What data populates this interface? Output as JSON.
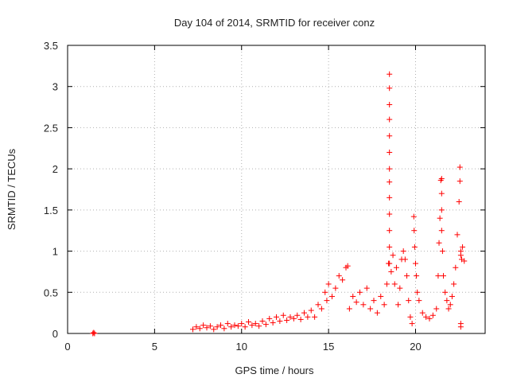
{
  "chart_data": {
    "type": "scatter",
    "title": "Day 104 of 2014, SRMTID for receiver conz",
    "xlabel": "GPS time / hours",
    "ylabel": "SRMTID / TECUs",
    "xlim": [
      0,
      24
    ],
    "ylim": [
      0,
      3.5
    ],
    "grid": true,
    "marker": "+",
    "color": "#ff0000",
    "xticks": [
      0,
      5,
      10,
      15,
      20
    ],
    "xtick_labels": [
      "0",
      "5",
      "10",
      "15",
      "20"
    ],
    "yticks": [
      0,
      0.5,
      1,
      1.5,
      2,
      2.5,
      3,
      3.5
    ],
    "ytick_labels": [
      "0",
      "0.5",
      "1",
      "1.5",
      "2",
      "2.5",
      "3",
      "3.5"
    ],
    "series": [
      {
        "name": "SRMTID",
        "x": [
          1.45,
          1.5,
          1.55,
          7.2,
          7.4,
          7.6,
          7.8,
          8.0,
          8.2,
          8.4,
          8.6,
          8.8,
          9.0,
          9.2,
          9.4,
          9.6,
          9.8,
          10.0,
          10.2,
          10.4,
          10.6,
          10.8,
          11.0,
          11.2,
          11.4,
          11.6,
          11.8,
          12.0,
          12.2,
          12.4,
          12.6,
          12.8,
          13.0,
          13.2,
          13.4,
          13.6,
          13.8,
          14.0,
          14.2,
          14.4,
          14.6,
          14.8,
          14.9,
          15.0,
          15.2,
          15.4,
          15.6,
          15.8,
          16.0,
          16.1,
          16.2,
          16.4,
          16.6,
          16.8,
          17.0,
          17.2,
          17.4,
          17.6,
          17.8,
          18.0,
          18.2,
          18.35,
          18.45,
          18.5,
          18.5,
          18.5,
          18.5,
          18.5,
          18.5,
          18.5,
          18.5,
          18.5,
          18.5,
          18.5,
          18.5,
          18.5,
          18.6,
          18.7,
          18.8,
          18.9,
          19.0,
          19.1,
          19.2,
          19.3,
          19.4,
          19.5,
          19.6,
          19.7,
          19.8,
          19.9,
          19.92,
          19.95,
          20.0,
          20.05,
          20.1,
          20.2,
          20.4,
          20.6,
          20.8,
          21.0,
          21.2,
          21.3,
          21.35,
          21.4,
          21.45,
          21.5,
          21.5,
          21.5,
          21.5,
          21.55,
          21.6,
          21.7,
          21.8,
          21.9,
          22.0,
          22.1,
          22.2,
          22.3,
          22.4,
          22.5,
          22.55,
          22.55,
          22.6,
          22.6,
          22.6,
          22.6,
          22.65,
          22.7,
          22.8
        ],
        "y": [
          0.0,
          0.01,
          0.0,
          0.05,
          0.08,
          0.06,
          0.1,
          0.07,
          0.09,
          0.05,
          0.08,
          0.1,
          0.06,
          0.12,
          0.08,
          0.1,
          0.09,
          0.12,
          0.08,
          0.14,
          0.1,
          0.12,
          0.09,
          0.15,
          0.11,
          0.18,
          0.13,
          0.2,
          0.15,
          0.22,
          0.16,
          0.2,
          0.18,
          0.22,
          0.17,
          0.25,
          0.2,
          0.28,
          0.2,
          0.35,
          0.3,
          0.5,
          0.4,
          0.6,
          0.45,
          0.55,
          0.7,
          0.65,
          0.8,
          0.82,
          0.3,
          0.45,
          0.38,
          0.5,
          0.35,
          0.55,
          0.3,
          0.4,
          0.25,
          0.45,
          0.35,
          0.6,
          0.85,
          3.15,
          2.98,
          2.78,
          2.6,
          2.4,
          2.2,
          2.0,
          1.84,
          1.65,
          1.45,
          1.25,
          1.05,
          0.85,
          0.75,
          0.95,
          0.6,
          0.8,
          0.35,
          0.55,
          0.9,
          1.0,
          0.9,
          0.7,
          0.4,
          0.2,
          0.12,
          1.42,
          1.25,
          1.05,
          0.85,
          0.7,
          0.5,
          0.4,
          0.25,
          0.2,
          0.18,
          0.22,
          0.3,
          0.7,
          1.1,
          1.4,
          1.86,
          1.88,
          1.7,
          1.5,
          1.25,
          1.0,
          0.7,
          0.5,
          0.4,
          0.3,
          0.35,
          0.45,
          0.6,
          0.8,
          1.2,
          1.6,
          2.02,
          1.85,
          0.95,
          0.12,
          0.08,
          1.0,
          0.9,
          1.05,
          0.88
        ]
      }
    ]
  }
}
